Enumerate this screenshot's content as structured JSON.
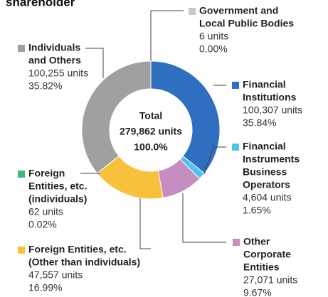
{
  "chart_data": {
    "type": "donut",
    "title": "shareholder",
    "center_lines": [
      "Total",
      "279,862 units",
      "100.0%"
    ],
    "categories": [
      [
        "Government and",
        "Local Public Bodies"
      ],
      [
        "Financial",
        "Institutions"
      ],
      [
        "Financial",
        "Instruments",
        "Business",
        "Operators"
      ],
      [
        "Other",
        "Corporate",
        "Entities"
      ],
      [
        "Foreign Entities, etc.",
        "(Other than individuals)"
      ],
      [
        "Foreign",
        "Entities, etc.",
        "(individuals)"
      ],
      [
        "Individuals",
        "and Others"
      ]
    ],
    "units_labels": [
      "6 units",
      "100,307 units",
      "4,604 units",
      "27,071 units",
      "47,557 units",
      "62 units",
      "100,255 units"
    ],
    "values": [
      0.0,
      35.84,
      1.65,
      9.67,
      16.99,
      0.02,
      35.82
    ],
    "value_labels": [
      "0.00%",
      "35.84%",
      "1.65%",
      "9.67%",
      "16.99%",
      "0.02%",
      "35.82%"
    ],
    "colors": [
      "#c8c8c8",
      "#2f6fbf",
      "#4fc3ef",
      "#c68dc0",
      "#f8c13c",
      "#3cb87a",
      "#a0a0a0"
    ]
  }
}
